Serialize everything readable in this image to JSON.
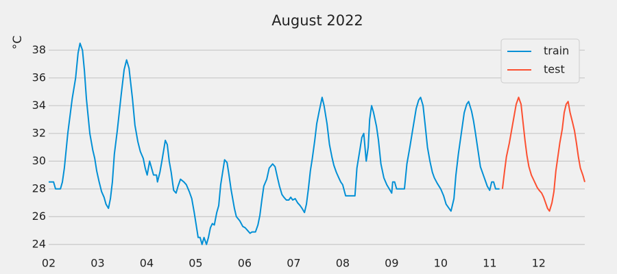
{
  "chart_data": {
    "type": "line",
    "title": "August 2022",
    "y_label": "°C",
    "xlim": [
      2,
      12.94
    ],
    "ylim": [
      23.2,
      39.1
    ],
    "xticks": [
      {
        "value": 2,
        "label": "02"
      },
      {
        "value": 3,
        "label": "03"
      },
      {
        "value": 4,
        "label": "04"
      },
      {
        "value": 5,
        "label": "05"
      },
      {
        "value": 6,
        "label": "06"
      },
      {
        "value": 7,
        "label": "07"
      },
      {
        "value": 8,
        "label": "08"
      },
      {
        "value": 9,
        "label": "09"
      },
      {
        "value": 10,
        "label": "10"
      },
      {
        "value": 11,
        "label": "11"
      },
      {
        "value": 12,
        "label": "12"
      }
    ],
    "yticks": [
      24,
      26,
      28,
      30,
      32,
      34,
      36,
      38
    ],
    "grid": true,
    "legend": "upper right",
    "series": [
      {
        "name": "train",
        "color": "#008fd5",
        "x": [
          2.0,
          2.1,
          2.14,
          2.24,
          2.28,
          2.32,
          2.39,
          2.48,
          2.55,
          2.6,
          2.64,
          2.69,
          2.73,
          2.77,
          2.84,
          2.9,
          2.94,
          2.98,
          3.03,
          3.08,
          3.13,
          3.17,
          3.22,
          3.26,
          3.3,
          3.34,
          3.4,
          3.48,
          3.54,
          3.59,
          3.64,
          3.71,
          3.76,
          3.82,
          3.87,
          3.93,
          3.97,
          4.01,
          4.06,
          4.1,
          4.14,
          4.2,
          4.22,
          4.27,
          4.31,
          4.38,
          4.42,
          4.46,
          4.5,
          4.55,
          4.6,
          4.64,
          4.69,
          4.76,
          4.81,
          4.87,
          4.92,
          4.97,
          5.01,
          5.05,
          5.09,
          5.13,
          5.17,
          5.22,
          5.26,
          5.3,
          5.34,
          5.38,
          5.43,
          5.47,
          5.51,
          5.59,
          5.64,
          5.68,
          5.72,
          5.79,
          5.83,
          5.9,
          5.96,
          6.01,
          6.06,
          6.11,
          6.15,
          6.22,
          6.27,
          6.31,
          6.35,
          6.39,
          6.45,
          6.5,
          6.57,
          6.62,
          6.67,
          6.71,
          6.76,
          6.8,
          6.85,
          6.9,
          6.94,
          6.98,
          7.03,
          7.08,
          7.13,
          7.17,
          7.22,
          7.26,
          7.3,
          7.34,
          7.38,
          7.43,
          7.47,
          7.52,
          7.58,
          7.62,
          7.68,
          7.73,
          7.78,
          7.82,
          7.87,
          7.92,
          7.96,
          8.0,
          8.06,
          8.14,
          8.25,
          8.29,
          8.35,
          8.39,
          8.43,
          8.48,
          8.52,
          8.55,
          8.59,
          8.63,
          8.69,
          8.73,
          8.78,
          8.84,
          8.9,
          8.95,
          9.0,
          9.02,
          9.06,
          9.1,
          9.19,
          9.26,
          9.31,
          9.37,
          9.43,
          9.5,
          9.55,
          9.59,
          9.64,
          9.68,
          9.73,
          9.78,
          9.83,
          9.87,
          9.93,
          10.0,
          10.06,
          10.11,
          10.17,
          10.21,
          10.27,
          10.31,
          10.36,
          10.42,
          10.48,
          10.53,
          10.57,
          10.63,
          10.67,
          10.71,
          10.76,
          10.81,
          10.87,
          10.91,
          10.95,
          11.0,
          11.04,
          11.08,
          11.12,
          11.2
        ],
        "values": [
          28.5,
          28.5,
          28.0,
          28.0,
          28.5,
          29.5,
          32.0,
          34.5,
          36.0,
          37.8,
          38.5,
          38.0,
          36.5,
          34.5,
          32.0,
          30.8,
          30.2,
          29.3,
          28.5,
          27.8,
          27.4,
          26.9,
          26.6,
          27.3,
          28.5,
          30.5,
          32.2,
          34.8,
          36.6,
          37.3,
          36.7,
          34.5,
          32.6,
          31.4,
          30.7,
          30.2,
          29.5,
          29.0,
          30.0,
          29.5,
          29.0,
          29.0,
          28.5,
          29.2,
          30.0,
          31.5,
          31.2,
          30.0,
          29.2,
          27.9,
          27.7,
          28.2,
          28.7,
          28.5,
          28.3,
          27.8,
          27.3,
          26.3,
          25.4,
          24.5,
          24.5,
          24.0,
          24.5,
          24.0,
          24.5,
          25.2,
          25.5,
          25.4,
          26.3,
          26.8,
          28.3,
          30.1,
          29.9,
          29.0,
          28.0,
          26.6,
          26.0,
          25.7,
          25.3,
          25.2,
          25.0,
          24.8,
          24.9,
          24.9,
          25.4,
          26.1,
          27.2,
          28.2,
          28.7,
          29.5,
          29.8,
          29.6,
          28.8,
          28.2,
          27.6,
          27.4,
          27.2,
          27.2,
          27.4,
          27.2,
          27.3,
          27.0,
          26.8,
          26.6,
          26.3,
          26.9,
          28.0,
          29.3,
          30.2,
          31.5,
          32.7,
          33.6,
          34.6,
          34.0,
          32.7,
          31.2,
          30.3,
          29.7,
          29.2,
          28.8,
          28.5,
          28.3,
          27.5,
          27.5,
          27.5,
          29.5,
          30.8,
          31.7,
          32.0,
          30.0,
          31.0,
          33.0,
          34.0,
          33.5,
          32.5,
          31.5,
          29.8,
          28.8,
          28.3,
          28.0,
          27.7,
          28.5,
          28.5,
          28.0,
          28.0,
          28.0,
          29.8,
          31.0,
          32.3,
          33.8,
          34.4,
          34.6,
          34.0,
          32.7,
          31.0,
          30.0,
          29.2,
          28.8,
          28.4,
          28.0,
          27.5,
          26.9,
          26.6,
          26.4,
          27.3,
          29.0,
          30.5,
          32.0,
          33.5,
          34.1,
          34.3,
          33.6,
          32.9,
          32.0,
          30.8,
          29.6,
          29.0,
          28.6,
          28.2,
          27.9,
          28.5,
          28.5,
          28.0,
          28.0
        ]
      },
      {
        "name": "test",
        "color": "#fc4f30",
        "x": [
          11.26,
          11.3,
          11.34,
          11.4,
          11.45,
          11.5,
          11.54,
          11.59,
          11.64,
          11.68,
          11.72,
          11.76,
          11.8,
          11.85,
          11.89,
          11.93,
          11.97,
          12.01,
          12.06,
          12.1,
          12.14,
          12.18,
          12.22,
          12.27,
          12.31,
          12.35,
          12.39,
          12.43,
          12.48,
          12.52,
          12.56,
          12.6,
          12.64,
          12.69,
          12.73,
          12.77,
          12.81,
          12.85,
          12.9,
          12.94
        ],
        "values": [
          28.0,
          29.2,
          30.3,
          31.3,
          32.3,
          33.3,
          34.1,
          34.6,
          34.1,
          32.8,
          31.5,
          30.4,
          29.6,
          29.0,
          28.7,
          28.4,
          28.1,
          27.9,
          27.7,
          27.4,
          27.0,
          26.6,
          26.4,
          27.0,
          27.8,
          29.3,
          30.3,
          31.3,
          32.3,
          33.5,
          34.1,
          34.3,
          33.5,
          32.8,
          32.2,
          31.3,
          30.3,
          29.5,
          29.0,
          28.5
        ]
      }
    ]
  }
}
